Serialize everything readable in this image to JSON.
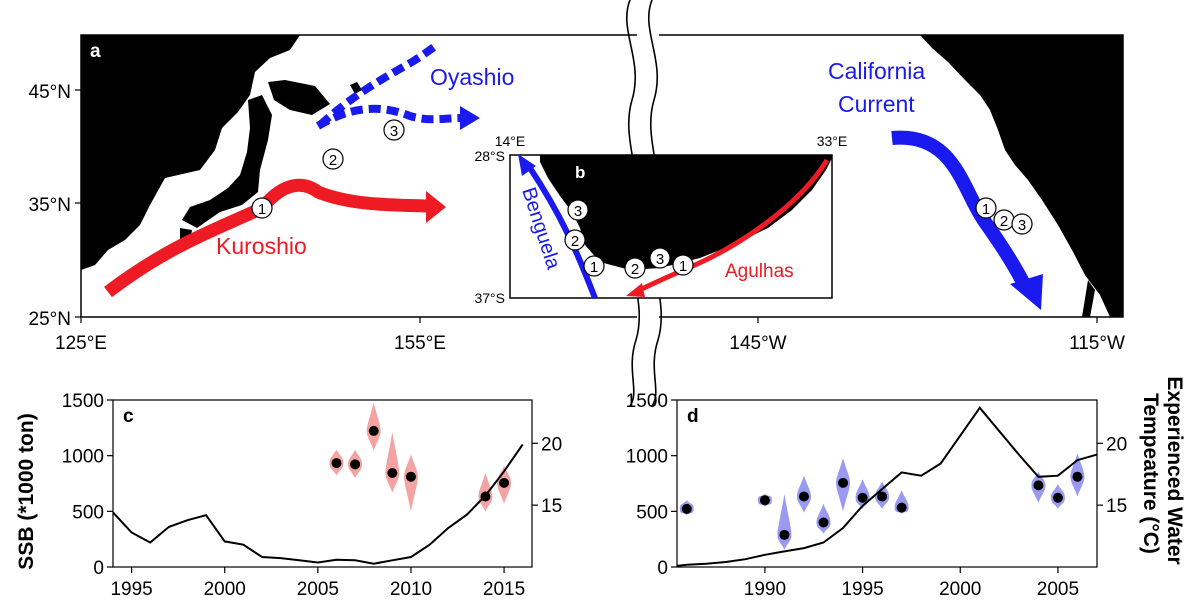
{
  "map": {
    "panel_a": "a",
    "panel_b": "b",
    "lat_ticks": [
      "45°N",
      "35°N",
      "25°N"
    ],
    "lon_ticks": [
      "125°E",
      "155°E",
      "145°W",
      "115°W"
    ],
    "currents": {
      "kuroshio": "Kuroshio",
      "oyashio": "Oyashio",
      "california": [
        "California",
        "Current"
      ],
      "benguela": "Benguela",
      "agulhas": "Agulhas"
    },
    "inset_ticks": {
      "lon_left": "14°E",
      "lon_right": "33°E",
      "lat_top": "28°S",
      "lat_bottom": "37°S"
    },
    "site_labels": [
      "1",
      "2",
      "3"
    ],
    "colors": {
      "land": "#000000",
      "warm": "#ee1b24",
      "cold": "#1a1aee"
    }
  },
  "chart_data": [
    {
      "type": "line",
      "panel": "c",
      "ylabel": "SSB (*1000 ton)",
      "y2label": "",
      "xlim": [
        1994,
        2016.5
      ],
      "ylim": [
        0,
        1500
      ],
      "y2lim": [
        10,
        23.5
      ],
      "xticks": [
        1995,
        2000,
        2005,
        2010,
        2015
      ],
      "yticks": [
        0,
        500,
        1000,
        1500
      ],
      "y2ticks": [
        15,
        20
      ],
      "ssb": {
        "x": [
          1994,
          1995,
          1996,
          1997,
          1998,
          1999,
          2000,
          2001,
          2002,
          2003,
          2004,
          2005,
          2006,
          2007,
          2008,
          2009,
          2010,
          2011,
          2012,
          2013,
          2014,
          2015,
          2016
        ],
        "y": [
          490,
          310,
          220,
          360,
          420,
          465,
          230,
          200,
          90,
          80,
          60,
          40,
          65,
          60,
          30,
          60,
          90,
          200,
          350,
          470,
          640,
          860,
          1100
        ]
      },
      "temperature": {
        "x": [
          2006,
          2007,
          2008,
          2009,
          2010,
          2014,
          2015
        ],
        "median": [
          18.4,
          18.3,
          21.0,
          17.6,
          17.3,
          15.7,
          16.8
        ],
        "low": [
          17.4,
          17.2,
          19.4,
          16.0,
          14.5,
          14.5,
          15.1
        ],
        "high": [
          19.5,
          19.5,
          23.3,
          20.9,
          19.1,
          17.6,
          18.2
        ]
      },
      "violin_color": "#f4a3a3"
    },
    {
      "type": "line",
      "panel": "d",
      "ylabel": "",
      "y2label": "Experienced Water Tempeature (°C)",
      "xlim": [
        1985.5,
        2007
      ],
      "ylim": [
        0,
        1500
      ],
      "y2lim": [
        10,
        23.5
      ],
      "xticks": [
        1990,
        1995,
        2000,
        2005
      ],
      "yticks": [
        0,
        500,
        1000,
        1500
      ],
      "y2ticks": [
        15,
        20
      ],
      "ssb": {
        "x": [
          1985.5,
          1986,
          1987,
          1988,
          1989,
          1990,
          1991,
          1992,
          1993,
          1994,
          1995,
          1996,
          1997,
          1998,
          1999,
          2000,
          2001,
          2002,
          2003,
          2004,
          2005,
          2006,
          2007
        ],
        "y": [
          10,
          20,
          30,
          45,
          70,
          110,
          140,
          170,
          220,
          350,
          550,
          700,
          850,
          820,
          930,
          1180,
          1430,
          1220,
          1010,
          810,
          820,
          960,
          1010
        ]
      },
      "temperature": {
        "x": [
          1986,
          1990,
          1991,
          1992,
          1993,
          1994,
          1995,
          1996,
          1997,
          2004,
          2005,
          2006
        ],
        "median": [
          14.7,
          15.4,
          12.6,
          15.7,
          13.6,
          16.8,
          15.6,
          15.7,
          14.8,
          16.6,
          15.6,
          17.3
        ],
        "low": [
          14.2,
          14.9,
          11.4,
          14.4,
          12.7,
          14.5,
          14.7,
          14.7,
          14.3,
          15.2,
          14.7,
          15.7
        ],
        "high": [
          15.4,
          15.9,
          15.9,
          17.4,
          15.1,
          18.8,
          17.1,
          16.9,
          16.2,
          17.7,
          16.7,
          19.2
        ]
      },
      "violin_color": "#9a9af0"
    }
  ]
}
